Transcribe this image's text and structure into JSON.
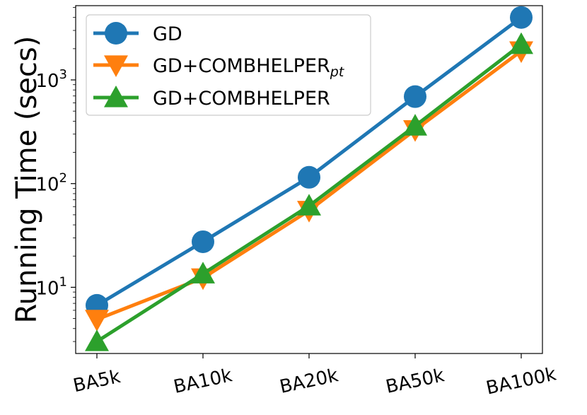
{
  "chart_data": {
    "type": "line",
    "title": "",
    "xlabel": "",
    "ylabel": "Running Time (secs)",
    "yscale": "log",
    "ylim": [
      2.3,
      5200
    ],
    "grid": false,
    "legend_placement": "top-left",
    "categories": [
      "BA5k",
      "BA10k",
      "BA20k",
      "BA50k",
      "BA100k"
    ],
    "y_ticks": [
      {
        "value": 10,
        "base": "10",
        "exp": "1"
      },
      {
        "value": 100,
        "base": "10",
        "exp": "2"
      },
      {
        "value": 1000,
        "base": "10",
        "exp": "3"
      }
    ],
    "series": [
      {
        "name": "GD",
        "name_sub": "",
        "marker": "circle",
        "color": "#1f77b4",
        "values": [
          6.7,
          27.5,
          115,
          690,
          4000
        ]
      },
      {
        "name": "GD+COMBHELPER",
        "name_sub": "pt",
        "marker": "triangle-down",
        "color": "#ff7f0e",
        "values": [
          4.9,
          12.3,
          55,
          330,
          1900
        ]
      },
      {
        "name": "GD+COMBHELPER",
        "name_sub": "",
        "marker": "triangle-up",
        "color": "#2ca02c",
        "values": [
          3.0,
          13.5,
          61,
          360,
          2200
        ]
      }
    ]
  }
}
